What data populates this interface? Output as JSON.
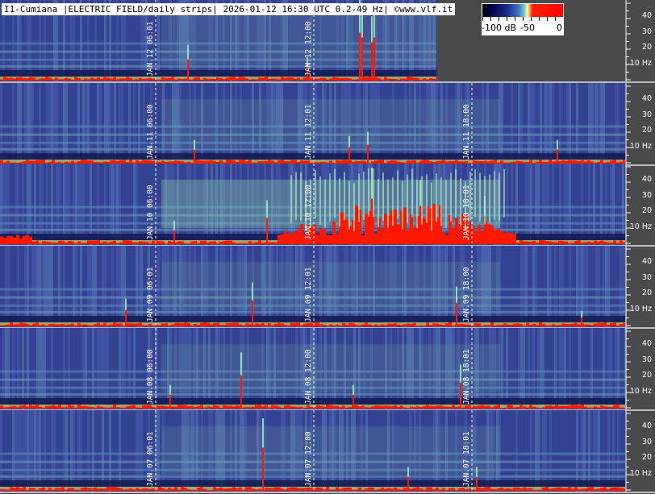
{
  "title": "I1-Cumiana |ELECTRIC FIELD/daily strips| 2026-01-12 16:30 UTC 0.2-49 Hz| ©www.vlf.it",
  "colorbar": {
    "labels": [
      "-100 dB",
      "-50",
      "0"
    ]
  },
  "axis": {
    "ticks": [
      "40",
      "30",
      "20",
      "",
      "10 Hz"
    ]
  },
  "strips": [
    {
      "day": "JAN.12",
      "labels": [
        "JAN.12  06:01",
        "JAN.12  12:00"
      ],
      "partial": true
    },
    {
      "day": "JAN.11",
      "labels": [
        "JAN.11  06:00",
        "JAN.11  12:01",
        "JAN.11  18:00"
      ]
    },
    {
      "day": "JAN.10",
      "labels": [
        "JAN.10  06:00",
        "JAN.10  12:00",
        "JAN.10  18:01"
      ]
    },
    {
      "day": "JAN.09",
      "labels": [
        "JAN.09  06:01",
        "JAN.09  12:01",
        "JAN.09  18:00"
      ]
    },
    {
      "day": "JAN.08",
      "labels": [
        "JAN.08  06:00",
        "JAN.08  12:00",
        "JAN.08  18:01"
      ]
    },
    {
      "day": "JAN.07",
      "labels": [
        "JAN.07  06:01",
        "JAN.07  12:00",
        "JAN.07  18:01"
      ]
    }
  ],
  "colors": {
    "background": "#4a4a4a",
    "blue": "#3a4a9a",
    "green": "#8fd8a8",
    "red": "#ff1800"
  }
}
